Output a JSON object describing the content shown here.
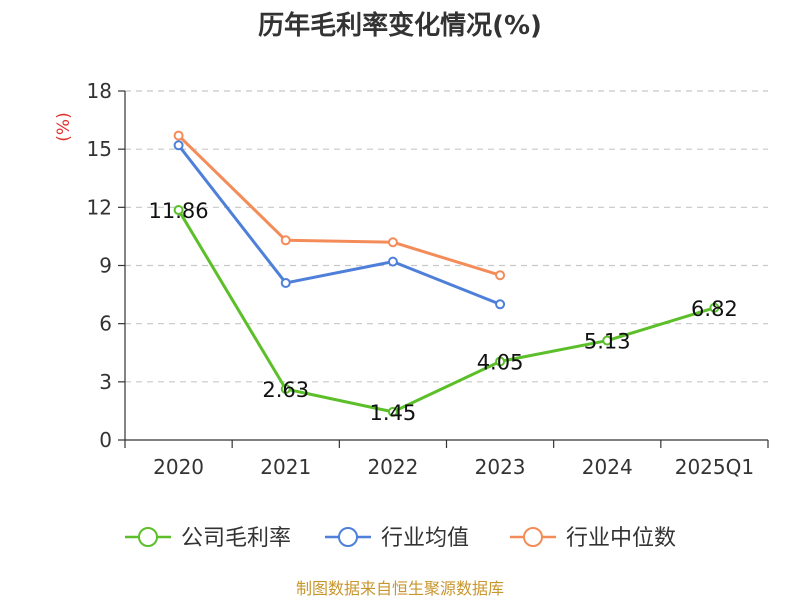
{
  "chart_data": {
    "type": "line",
    "title": "历年毛利率变化情况(%)",
    "ylabel": "(%)",
    "xlabel": "",
    "categories": [
      "2020",
      "2021",
      "2022",
      "2023",
      "2024",
      "2025Q1"
    ],
    "ylim": [
      0,
      18
    ],
    "yticks": [
      0,
      3,
      6,
      9,
      12,
      15,
      18
    ],
    "grid": true,
    "legend": "bottom",
    "series": [
      {
        "name": "公司毛利率",
        "color": "#5cbf2a",
        "values": [
          11.86,
          2.63,
          1.45,
          4.05,
          5.13,
          6.82
        ],
        "labels": [
          "11.86",
          "2.63",
          "1.45",
          "4.05",
          "5.13",
          "6.82"
        ]
      },
      {
        "name": "行业均值",
        "color": "#4e7fd9",
        "values": [
          15.2,
          8.1,
          9.2,
          7.0,
          null,
          null
        ]
      },
      {
        "name": "行业中位数",
        "color": "#f48c5a",
        "values": [
          15.7,
          10.3,
          10.2,
          8.5,
          null,
          null
        ]
      }
    ]
  },
  "source": "制图数据来自恒生聚源数据库"
}
